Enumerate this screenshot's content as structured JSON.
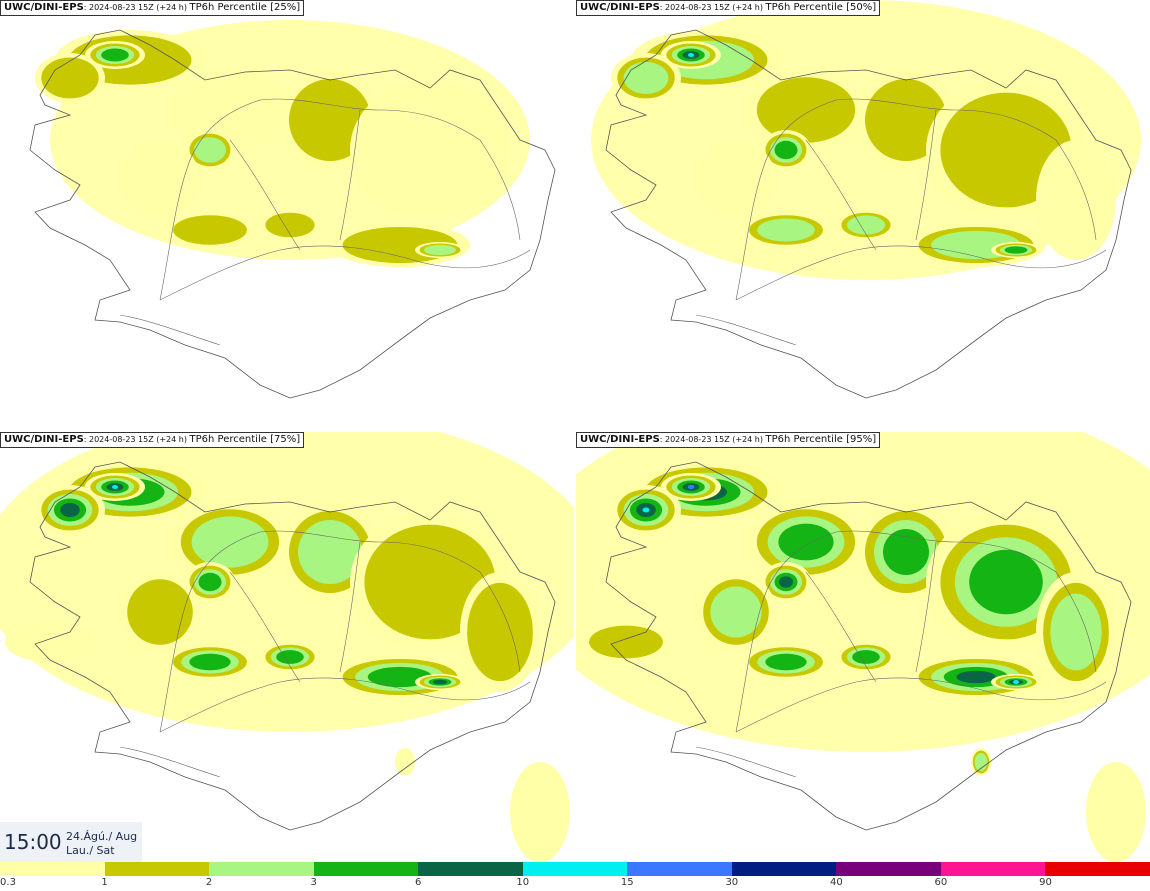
{
  "panels": [
    {
      "model": "UWC/DINI-EPS",
      "meta": ": 2024-08-23 15Z (+24 h) ",
      "title": "TP6h Percentile [25%]",
      "level": 0
    },
    {
      "model": "UWC/DINI-EPS",
      "meta": ": 2024-08-23 15Z (+24 h) ",
      "title": "TP6h Percentile [50%]",
      "level": 1
    },
    {
      "model": "UWC/DINI-EPS",
      "meta": ": 2024-08-23 15Z (+24 h) ",
      "title": "TP6h Percentile [75%]",
      "level": 2
    },
    {
      "model": "UWC/DINI-EPS",
      "meta": ": 2024-08-23 15Z (+24 h) ",
      "title": "TP6h Percentile [95%]",
      "level": 3
    }
  ],
  "timestamp": {
    "time": "15:00",
    "date": "24.Ágú./ Aug",
    "day": "Lau./ Sat"
  },
  "legend": {
    "colors": [
      "#ffffa8",
      "#c8c800",
      "#a8f582",
      "#14b414",
      "#0a6446",
      "#00f0f0",
      "#3c78ff",
      "#001e82",
      "#780078",
      "#ff1493",
      "#e60000"
    ],
    "labels": [
      "0.3",
      "1",
      "2",
      "3",
      "6",
      "10",
      "15",
      "30",
      "40",
      "60",
      "90"
    ]
  }
}
